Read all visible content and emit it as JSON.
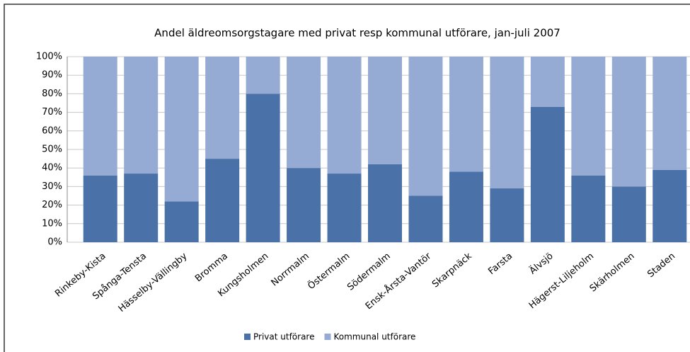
{
  "chart_data": {
    "type": "stacked_bar",
    "title": "Andel äldreomsorgstagare med privat resp kommunal utförare, jan-juli 2007",
    "categories": [
      "Rinkeby-Kista",
      "Spånga-Tensta",
      "Hässelby-Vällingby",
      "Bromma",
      "Kungsholmen",
      "Norrmalm",
      "Östermalm",
      "Södermalm",
      "Ensk-Årsta-Vantör",
      "Skarpnäck",
      "Farsta",
      "Älvsjö",
      "Hägerst-Liljeholm",
      "Skärholmen",
      "Staden"
    ],
    "series": [
      {
        "name": "Privat utförare",
        "color": "#4a72a8",
        "values": [
          36,
          37,
          22,
          45,
          80,
          40,
          37,
          42,
          25,
          38,
          29,
          73,
          36,
          30,
          39
        ]
      },
      {
        "name": "Kommunal utförare",
        "color": "#96abd3",
        "values": [
          64,
          63,
          78,
          55,
          20,
          60,
          63,
          58,
          75,
          62,
          71,
          27,
          64,
          70,
          61
        ]
      }
    ],
    "ylim": [
      0,
      100
    ],
    "yticks": [
      {
        "value": 0,
        "label": "0%"
      },
      {
        "value": 10,
        "label": "10%"
      },
      {
        "value": 20,
        "label": "20%"
      },
      {
        "value": 30,
        "label": "30%"
      },
      {
        "value": 40,
        "label": "40%"
      },
      {
        "value": 50,
        "label": "50%"
      },
      {
        "value": 60,
        "label": "60%"
      },
      {
        "value": 70,
        "label": "70%"
      },
      {
        "value": 80,
        "label": "80%"
      },
      {
        "value": 90,
        "label": "90%"
      },
      {
        "value": 100,
        "label": "100%"
      }
    ],
    "grid": true,
    "legend": "bottom"
  }
}
